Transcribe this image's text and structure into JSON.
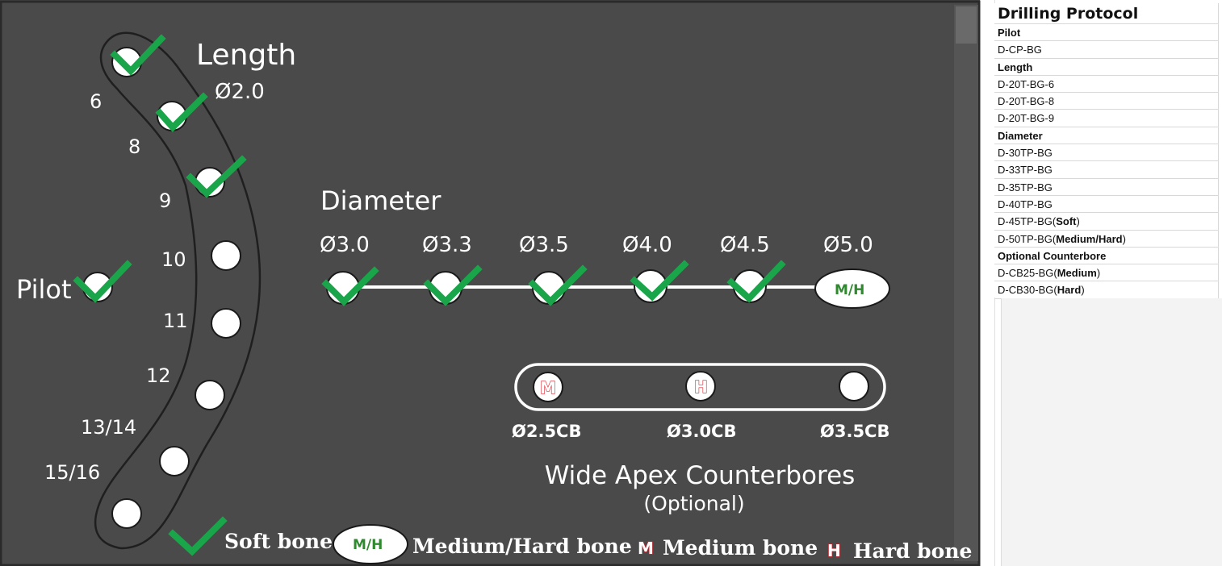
{
  "diagram": {
    "length_title": "Length",
    "length_diameter": "Ø2.0",
    "length_items": [
      "6",
      "8",
      "9",
      "10",
      "11",
      "12",
      "13/14",
      "15/16"
    ],
    "pilot_label": "Pilot",
    "diameter_title": "Diameter",
    "diameters": [
      "Ø3.0",
      "Ø3.3",
      "Ø3.5",
      "Ø4.0",
      "Ø4.5",
      "Ø5.0"
    ],
    "mh_mark": "M/H",
    "counterbores": [
      "Ø2.5CB",
      "Ø3.0CB",
      "Ø3.5CB"
    ],
    "counterbore_marks": [
      "M",
      "H"
    ],
    "counterbore_title": "Wide Apex Counterbores",
    "counterbore_subtitle": "(Optional)",
    "legend": {
      "soft": "Soft bone",
      "mh_mark": "M/H",
      "medium_hard": "Medium/Hard bone",
      "m_mark": "M",
      "medium": "Medium bone",
      "h_mark": "H",
      "hard": "Hard bone"
    },
    "colors": {
      "background": "#4a4a4a",
      "check": "#1ba54a",
      "mh_text": "#2f8a2f",
      "red_mark": "#e0202a"
    }
  },
  "protocol": {
    "title": "Drilling Protocol",
    "rows": [
      {
        "text": "Pilot",
        "head": true
      },
      {
        "text": "D-CP-BG"
      },
      {
        "text": "Length",
        "head": true
      },
      {
        "text": "D-20T-BG-6"
      },
      {
        "text": "D-20T-BG-8"
      },
      {
        "text": "D-20T-BG-9"
      },
      {
        "text": "Diameter",
        "head": true
      },
      {
        "text": "D-30TP-BG"
      },
      {
        "text": "D-33TP-BG"
      },
      {
        "text": "D-35TP-BG"
      },
      {
        "text": "D-40TP-BG"
      },
      {
        "text": "D-45TP-BG(",
        "bold": "Soft",
        "suffix": ")"
      },
      {
        "text": "D-50TP-BG(",
        "bold": "Medium/Hard",
        "suffix": ")"
      },
      {
        "text": "Optional Counterbore",
        "head": true
      },
      {
        "text": "D-CB25-BG(",
        "bold": "Medium",
        "suffix": ")"
      },
      {
        "text": "D-CB30-BG(",
        "bold": "Hard",
        "suffix": ")"
      }
    ]
  }
}
